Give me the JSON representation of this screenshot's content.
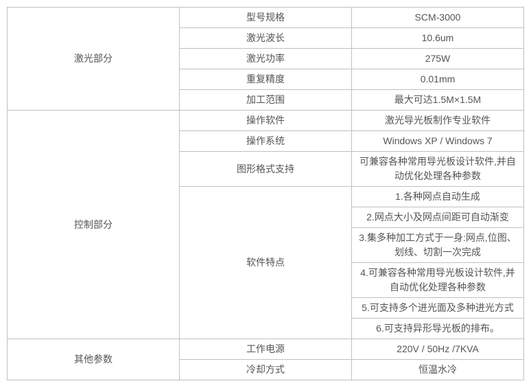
{
  "table": {
    "border_color": "#c0c0c0",
    "text_color": "#555555",
    "background_color": "#ffffff",
    "font_size": 14,
    "sections": [
      {
        "name": "激光部分",
        "rows": [
          {
            "label": "型号规格",
            "value": "SCM-3000"
          },
          {
            "label": "激光波长",
            "value": "10.6um"
          },
          {
            "label": "激光功率",
            "value": "275W"
          },
          {
            "label": "重复精度",
            "value": "0.01mm"
          },
          {
            "label": "加工范围",
            "value": "最大可达1.5M×1.5M"
          }
        ]
      },
      {
        "name": "控制部分",
        "rows_simple": [
          {
            "label": "操作软件",
            "value": "激光导光板制作专业软件"
          },
          {
            "label": "操作系统",
            "value": "Windows XP / Windows 7"
          },
          {
            "label": "图形格式支持",
            "value": "可兼容各种常用导光板设计软件,并自动优化处理各种参数"
          }
        ],
        "software_features": {
          "label": "软件特点",
          "items": [
            "1.各种网点自动生成",
            "2.网点大小及网点间距可自动渐变",
            "3.集多种加工方式于一身:网点,位图、划线、切割一次完成",
            "4.可兼容各种常用导光板设计软件,并自动优化处理各种参数",
            "5.可支持多个进光面及多种进光方式",
            "6.可支持异形导光板的排布。"
          ]
        }
      },
      {
        "name": "其他参数",
        "rows": [
          {
            "label": "工作电源",
            "value": "220V / 50Hz /7KVA"
          },
          {
            "label": "冷却方式",
            "value": "恒温水冷"
          }
        ]
      }
    ]
  }
}
